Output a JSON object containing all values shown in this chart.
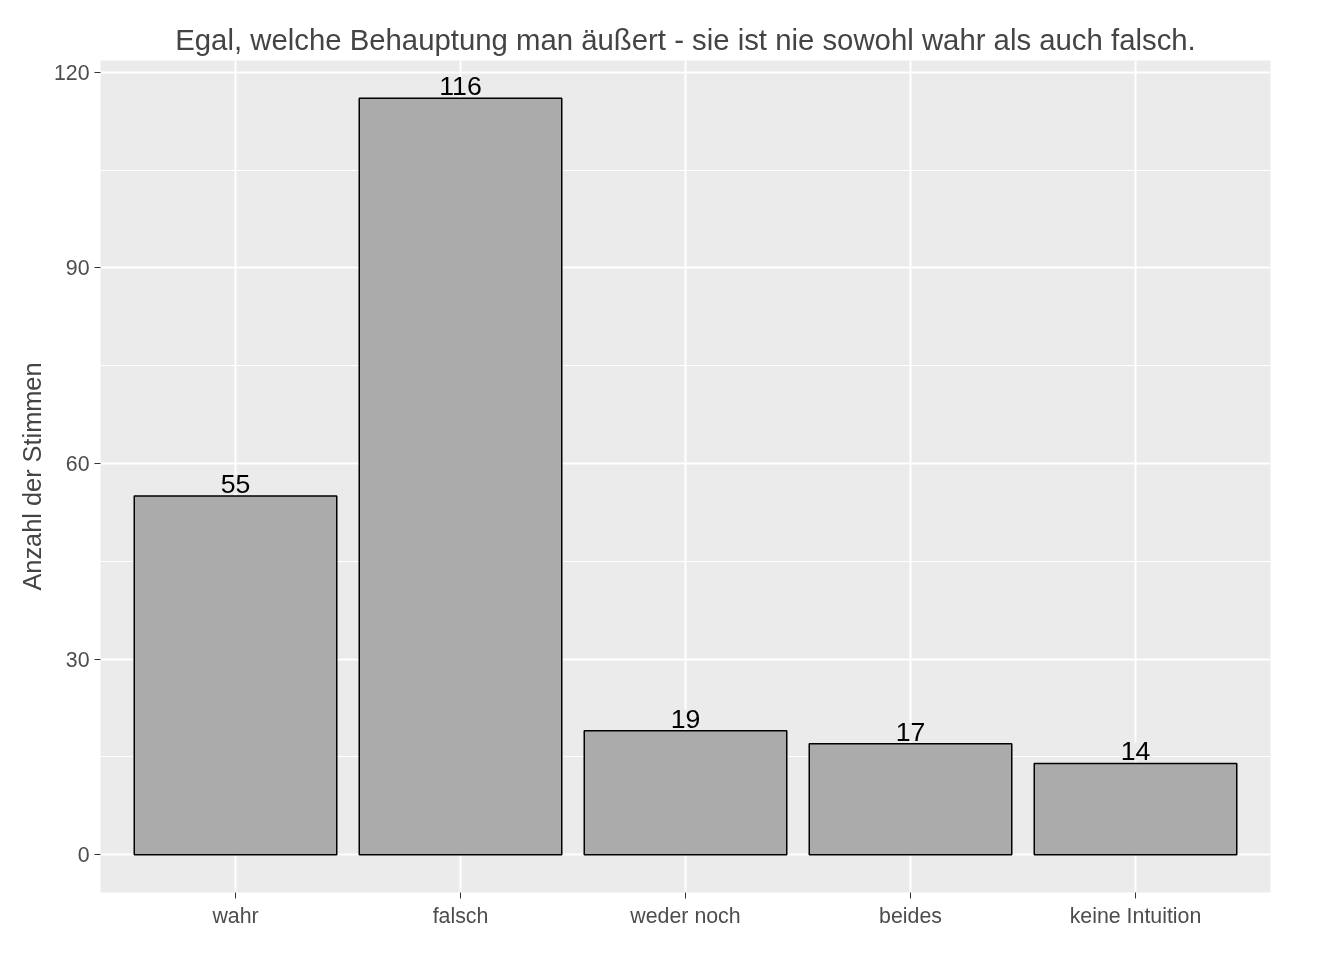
{
  "chart_data": {
    "type": "bar",
    "title": "Egal, welche Behauptung man äußert - sie ist nie sowohl wahr als auch falsch.",
    "ylabel": "Anzahl der Stimmen",
    "categories": [
      "wahr",
      "falsch",
      "weder noch",
      "beides",
      "keine Intuition"
    ],
    "values": [
      55,
      116,
      19,
      17,
      14
    ],
    "color": "#ababab",
    "ylim": [
      -5.8,
      121.8
    ],
    "yticks": [
      0,
      30,
      60,
      90,
      120
    ],
    "grid": true,
    "data_labels": true
  }
}
